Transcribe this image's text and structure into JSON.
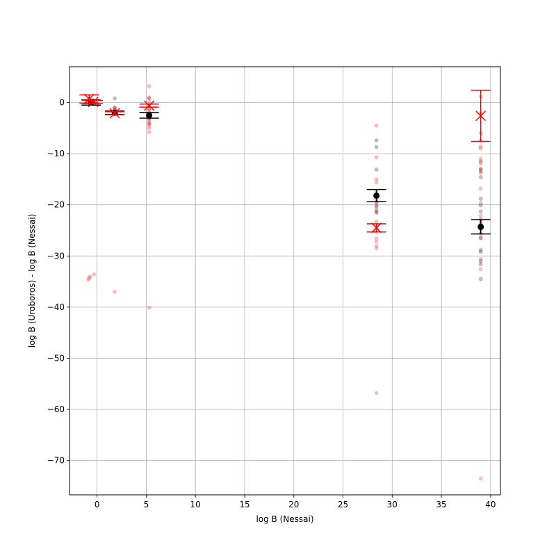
{
  "chart_data": {
    "type": "scatter",
    "title": "",
    "xlabel": "log B (Nessai)",
    "ylabel": "log B (Uroboros) - log B (Nessai)",
    "xlim": [
      -2.8,
      41.0
    ],
    "ylim": [
      -76.7,
      7.0
    ],
    "grid": true,
    "xticks": [
      0,
      5,
      10,
      15,
      20,
      25,
      30,
      35,
      40
    ],
    "yticks": [
      0,
      -10,
      -20,
      -30,
      -40,
      -50,
      -60,
      -70
    ],
    "colors": {
      "black_series": "#000000",
      "red_series": "#ff0000",
      "grid": "#b0b0b0"
    },
    "black_points": [
      [
        -0.8,
        0.3
      ],
      [
        -0.6,
        -0.1
      ],
      [
        -0.4,
        0.2
      ],
      [
        -0.2,
        0.1
      ],
      [
        0.0,
        -0.2
      ],
      [
        -0.5,
        0.5
      ],
      [
        1.8,
        0.8
      ],
      [
        1.8,
        -1.0
      ],
      [
        1.8,
        -1.5
      ],
      [
        1.8,
        -1.8
      ],
      [
        1.8,
        -2.2
      ],
      [
        5.3,
        0.8
      ],
      [
        5.3,
        -1.5
      ],
      [
        5.3,
        -2.5
      ],
      [
        5.3,
        -3.2
      ],
      [
        5.3,
        -4.0
      ],
      [
        5.3,
        -2.8
      ],
      [
        28.4,
        -7.4
      ],
      [
        28.4,
        -8.7
      ],
      [
        28.4,
        -13.1
      ],
      [
        28.4,
        -18.1
      ],
      [
        28.4,
        -19.4
      ],
      [
        28.4,
        -20.2
      ],
      [
        28.4,
        -21.0
      ],
      [
        28.4,
        -21.5
      ],
      [
        39.0,
        -11.5
      ],
      [
        39.0,
        -13.0
      ],
      [
        39.0,
        -13.7
      ],
      [
        39.0,
        -14.6
      ],
      [
        39.0,
        -18.8
      ],
      [
        39.0,
        -20.1
      ],
      [
        39.0,
        -21.3
      ],
      [
        39.0,
        -22.8
      ],
      [
        39.0,
        -23.8
      ],
      [
        39.0,
        -24.8
      ],
      [
        39.0,
        -25.6
      ],
      [
        39.0,
        -26.5
      ],
      [
        39.0,
        -28.8
      ],
      [
        39.0,
        -29.2
      ],
      [
        39.0,
        -31.0
      ],
      [
        39.0,
        -31.6
      ],
      [
        39.0,
        -34.5
      ]
    ],
    "red_points": [
      [
        -0.9,
        0.6
      ],
      [
        -0.7,
        0.2
      ],
      [
        -0.5,
        -0.2
      ],
      [
        -0.3,
        0.4
      ],
      [
        -0.8,
        -34.3
      ],
      [
        -0.7,
        -34.0
      ],
      [
        -0.9,
        -34.6
      ],
      [
        -0.3,
        -33.6
      ],
      [
        1.8,
        -1.0
      ],
      [
        1.8,
        -1.3
      ],
      [
        1.8,
        -1.7
      ],
      [
        1.8,
        -2.0
      ],
      [
        1.8,
        -37.0
      ],
      [
        5.3,
        3.2
      ],
      [
        5.3,
        1.0
      ],
      [
        5.3,
        0.2
      ],
      [
        5.3,
        -0.5
      ],
      [
        5.3,
        -1.2
      ],
      [
        5.3,
        -2.0
      ],
      [
        5.3,
        -3.0
      ],
      [
        5.3,
        -3.5
      ],
      [
        5.3,
        -4.2
      ],
      [
        5.3,
        -4.5
      ],
      [
        5.3,
        -5.0
      ],
      [
        5.3,
        -5.8
      ],
      [
        5.3,
        -40.1
      ],
      [
        28.4,
        -4.5
      ],
      [
        28.4,
        -10.7
      ],
      [
        28.4,
        -15.0
      ],
      [
        28.4,
        -15.6
      ],
      [
        28.4,
        -17.4
      ],
      [
        28.4,
        -18.8
      ],
      [
        28.4,
        -19.6
      ],
      [
        28.4,
        -20.4
      ],
      [
        28.4,
        -21.4
      ],
      [
        28.4,
        -23.3
      ],
      [
        28.4,
        -24.0
      ],
      [
        28.4,
        -24.6
      ],
      [
        28.4,
        -25.3
      ],
      [
        28.4,
        -26.6
      ],
      [
        28.4,
        -27.2
      ],
      [
        28.4,
        -28.0
      ],
      [
        28.4,
        -28.5
      ],
      [
        28.4,
        -56.8
      ],
      [
        39.0,
        1.2
      ],
      [
        39.0,
        -2.0
      ],
      [
        39.0,
        -6.0
      ],
      [
        39.0,
        -7.5
      ],
      [
        39.0,
        -8.6
      ],
      [
        39.0,
        -9.0
      ],
      [
        39.0,
        -11.0
      ],
      [
        39.0,
        -11.9
      ],
      [
        39.0,
        -13.0
      ],
      [
        39.0,
        -13.4
      ],
      [
        39.0,
        -16.8
      ],
      [
        39.0,
        -19.6
      ],
      [
        39.0,
        -22.1
      ],
      [
        39.0,
        -23.3
      ],
      [
        39.0,
        -24.7
      ],
      [
        39.0,
        -26.4
      ],
      [
        39.0,
        -30.6
      ],
      [
        39.0,
        -32.6
      ],
      [
        39.0,
        -73.5
      ]
    ],
    "black_errorbars": [
      {
        "x": -0.6,
        "y": 0.0,
        "err": 0.5
      },
      {
        "x": 1.8,
        "y": -2.0,
        "err": 0.35
      },
      {
        "x": 5.3,
        "y": -2.5,
        "err": 0.55
      },
      {
        "x": 28.4,
        "y": -18.2,
        "err": 1.2
      },
      {
        "x": 39.0,
        "y": -24.3,
        "err": 1.4
      }
    ],
    "red_errorbars": [
      {
        "x": -0.8,
        "y": 0.7,
        "err": 0.8
      },
      {
        "x": -0.4,
        "y": 0.1,
        "err": 0.3
      },
      {
        "x": 1.8,
        "y": -2.1,
        "err": 0.3
      },
      {
        "x": 5.3,
        "y": -0.6,
        "err": 0.3
      },
      {
        "x": 28.4,
        "y": -24.5,
        "err": 0.8
      },
      {
        "x": 39.0,
        "y": -2.6,
        "err": 5.0
      }
    ]
  }
}
